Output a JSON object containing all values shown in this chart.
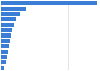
{
  "values": [
    72.0,
    19.0,
    14.5,
    11.0,
    9.5,
    8.5,
    7.5,
    6.5,
    5.8,
    5.2,
    4.5,
    3.8,
    2.5
  ],
  "bar_color": "#3a7fd5",
  "background_color": "#ffffff",
  "grid_color": "#d9d9d9",
  "bar_height": 0.75
}
